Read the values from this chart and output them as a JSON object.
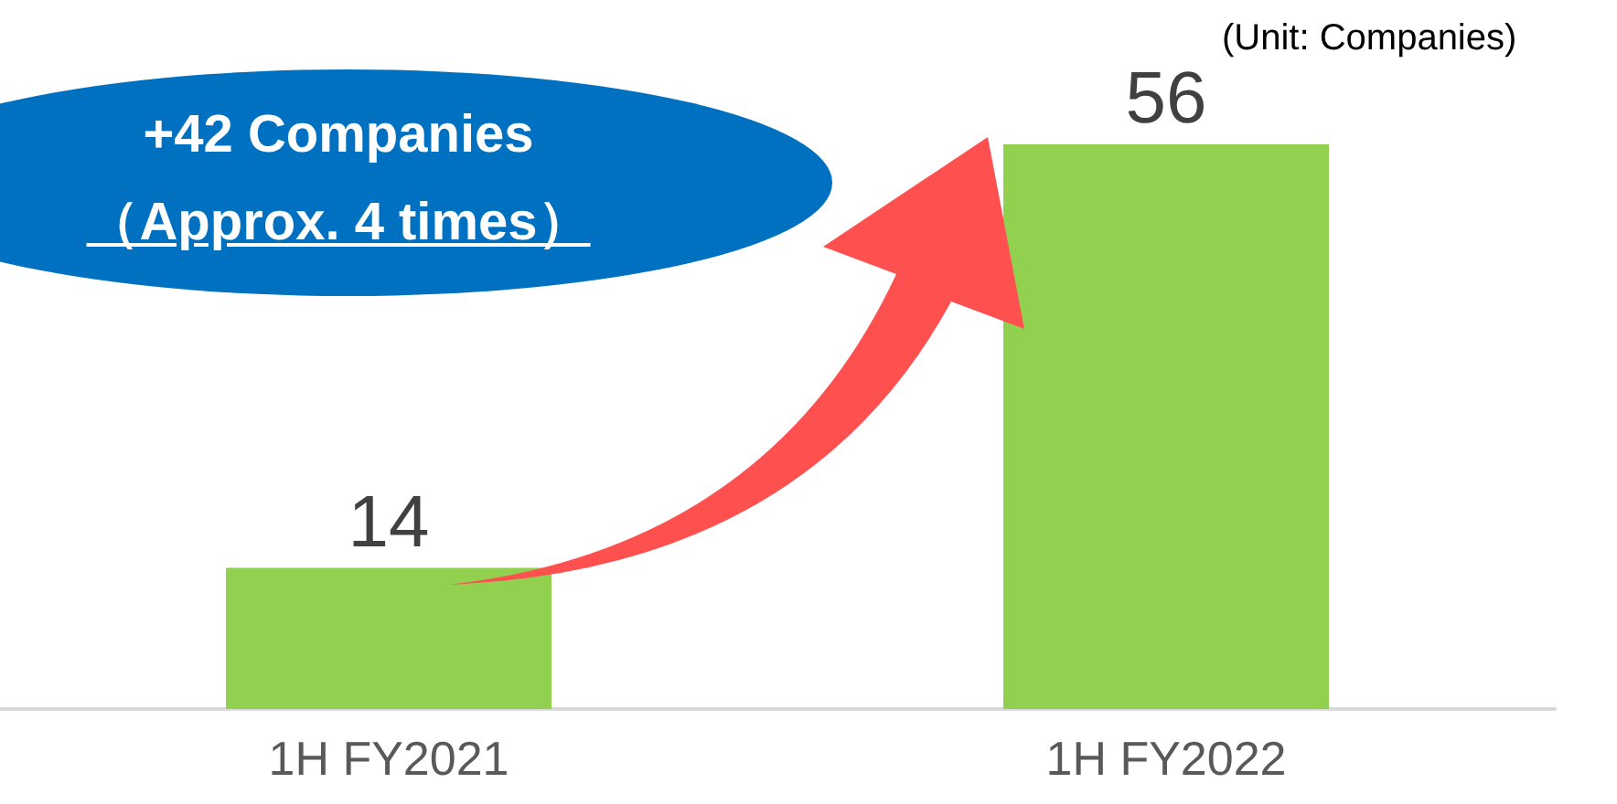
{
  "chart_data": {
    "type": "bar",
    "categories": [
      "1H FY2021",
      "1H FY2022"
    ],
    "values": [
      14,
      56
    ],
    "color": "#92d050",
    "data_labels": true,
    "annotations": [
      "(Unit: Companies)",
      "+42 Companies",
      "（Approx. 4 times）"
    ]
  }
}
